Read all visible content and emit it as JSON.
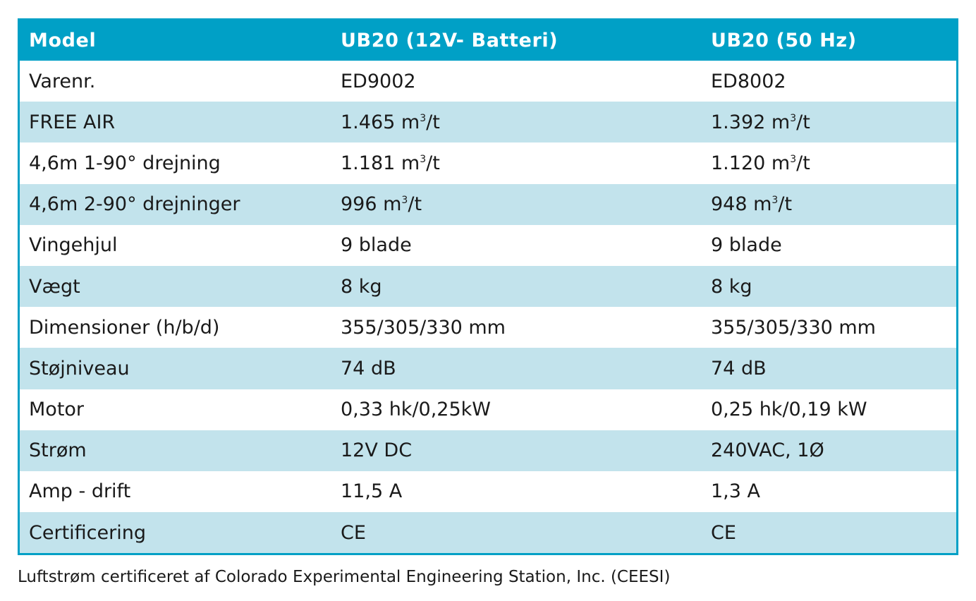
{
  "table": {
    "header": [
      "Model",
      "UB20 (12V- Batteri)",
      "UB20 (50 Hz)"
    ],
    "rows": [
      {
        "label": "Varenr.",
        "col1": "ED9002",
        "col2": "ED8002"
      },
      {
        "label": "FREE AIR",
        "col1": "1.465 m³/t",
        "col2": "1.392 m³/t"
      },
      {
        "label": "4,6m 1-90° drejning",
        "col1": "1.181 m³/t",
        "col2": "1.120 m³/t"
      },
      {
        "label": "4,6m 2-90° drejninger",
        "col1": "996 m³/t",
        "col2": "948 m³/t"
      },
      {
        "label": "Vingehjul",
        "col1": "9 blade",
        "col2": "9 blade"
      },
      {
        "label": "Vægt",
        "col1": "8 kg",
        "col2": "8 kg"
      },
      {
        "label": "Dimensioner (h/b/d)",
        "col1": "355/305/330 mm",
        "col2": "355/305/330 mm"
      },
      {
        "label": "Støjniveau",
        "col1": "74 dB",
        "col2": "74 dB"
      },
      {
        "label": "Motor",
        "col1": "0,33 hk/0,25kW",
        "col2": "0,25 hk/0,19 kW"
      },
      {
        "label": "Strøm",
        "col1": "12V DC",
        "col2": "240VAC, 1Ø"
      },
      {
        "label": "Amp - drift",
        "col1": "11,5 A",
        "col2": "1,3 A"
      },
      {
        "label": "Certificering",
        "col1": "CE",
        "col2": "CE"
      }
    ]
  },
  "footnote": "Luftstrøm certificeret af Colorado Experimental Engineering Station, Inc. (CEESI)",
  "colors": {
    "header_bg": "#00a0c6",
    "stripe_bg": "#c2e3ec",
    "border": "#00a0c6"
  }
}
